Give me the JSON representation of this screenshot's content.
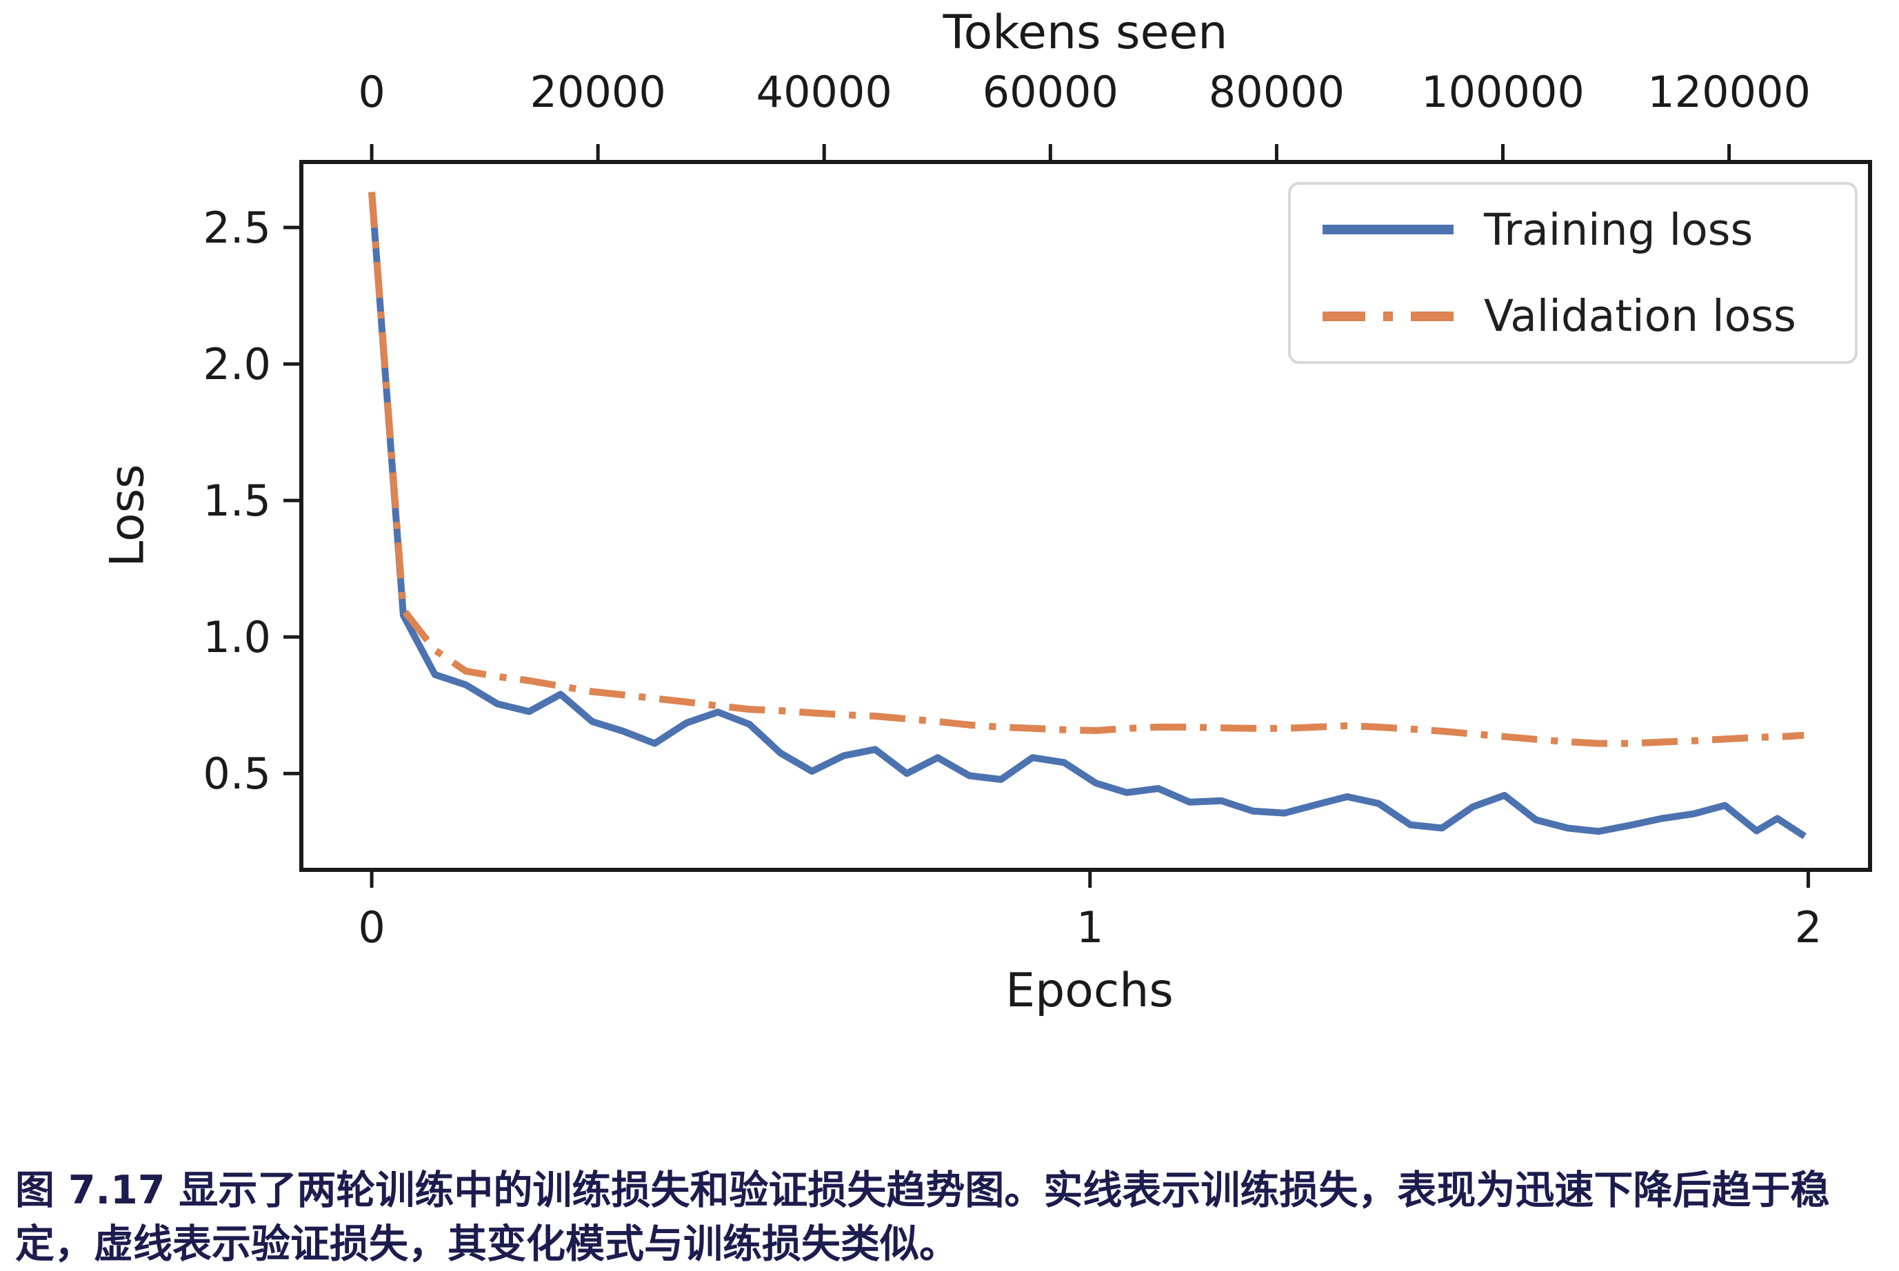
{
  "caption": {
    "text": "图 7.17 显示了两轮训练中的训练损失和验证损失趋势图。实线表示训练损失，表现为迅速下降后趋于稳定，虚线表示验证损失，其变化模式与训练损失类似。",
    "color": "#1c1c4e"
  },
  "legend": {
    "position": "upper right",
    "border_color": "#d8d8d8"
  },
  "chart_data": {
    "type": "line",
    "title": "",
    "xlabel": "Epochs",
    "ylabel": "Loss",
    "x2label": "Tokens seen",
    "grid": false,
    "frame_color": "#1a1a1a",
    "xlim": [
      -0.098,
      2.086
    ],
    "ylim": [
      0.147,
      2.74
    ],
    "xticks": [
      0,
      1,
      2
    ],
    "yticks": [
      2.5,
      2.0,
      1.5,
      1.0,
      0.5
    ],
    "top_ticks_tokens": [
      0,
      20000,
      40000,
      60000,
      80000,
      100000,
      120000
    ],
    "tokens_per_epoch": 63500,
    "series": [
      {
        "name": "Training loss",
        "color": "#4C72B0",
        "dash": "solid",
        "points": [
          [
            0.0,
            2.63
          ],
          [
            0.044,
            1.08
          ],
          [
            0.088,
            0.862
          ],
          [
            0.131,
            0.825
          ],
          [
            0.175,
            0.755
          ],
          [
            0.219,
            0.727
          ],
          [
            0.263,
            0.79
          ],
          [
            0.307,
            0.69
          ],
          [
            0.35,
            0.655
          ],
          [
            0.394,
            0.61
          ],
          [
            0.438,
            0.685
          ],
          [
            0.482,
            0.725
          ],
          [
            0.526,
            0.68
          ],
          [
            0.569,
            0.575
          ],
          [
            0.613,
            0.508
          ],
          [
            0.657,
            0.565
          ],
          [
            0.701,
            0.588
          ],
          [
            0.745,
            0.5
          ],
          [
            0.788,
            0.558
          ],
          [
            0.832,
            0.492
          ],
          [
            0.876,
            0.478
          ],
          [
            0.92,
            0.558
          ],
          [
            0.964,
            0.54
          ],
          [
            1.008,
            0.465
          ],
          [
            1.051,
            0.43
          ],
          [
            1.095,
            0.445
          ],
          [
            1.139,
            0.395
          ],
          [
            1.183,
            0.4
          ],
          [
            1.227,
            0.362
          ],
          [
            1.271,
            0.355
          ],
          [
            1.314,
            0.385
          ],
          [
            1.358,
            0.415
          ],
          [
            1.402,
            0.39
          ],
          [
            1.446,
            0.312
          ],
          [
            1.49,
            0.3
          ],
          [
            1.533,
            0.378
          ],
          [
            1.577,
            0.42
          ],
          [
            1.621,
            0.33
          ],
          [
            1.665,
            0.3
          ],
          [
            1.708,
            0.288
          ],
          [
            1.752,
            0.31
          ],
          [
            1.796,
            0.335
          ],
          [
            1.84,
            0.352
          ],
          [
            1.884,
            0.383
          ],
          [
            1.928,
            0.29
          ],
          [
            1.957,
            0.335
          ],
          [
            1.995,
            0.27
          ]
        ]
      },
      {
        "name": "Validation loss",
        "color": "#DD8452",
        "dash": "dashdot",
        "points": [
          [
            0.0,
            2.63
          ],
          [
            0.044,
            1.1
          ],
          [
            0.088,
            0.952
          ],
          [
            0.131,
            0.875
          ],
          [
            0.175,
            0.855
          ],
          [
            0.219,
            0.84
          ],
          [
            0.263,
            0.82
          ],
          [
            0.307,
            0.8
          ],
          [
            0.35,
            0.788
          ],
          [
            0.394,
            0.775
          ],
          [
            0.438,
            0.762
          ],
          [
            0.482,
            0.748
          ],
          [
            0.526,
            0.735
          ],
          [
            0.569,
            0.73
          ],
          [
            0.613,
            0.722
          ],
          [
            0.657,
            0.715
          ],
          [
            0.701,
            0.71
          ],
          [
            0.745,
            0.7
          ],
          [
            0.788,
            0.69
          ],
          [
            0.832,
            0.678
          ],
          [
            0.876,
            0.67
          ],
          [
            0.92,
            0.665
          ],
          [
            0.964,
            0.66
          ],
          [
            1.008,
            0.657
          ],
          [
            1.051,
            0.665
          ],
          [
            1.095,
            0.67
          ],
          [
            1.139,
            0.67
          ],
          [
            1.183,
            0.667
          ],
          [
            1.227,
            0.665
          ],
          [
            1.271,
            0.665
          ],
          [
            1.314,
            0.67
          ],
          [
            1.358,
            0.675
          ],
          [
            1.402,
            0.67
          ],
          [
            1.446,
            0.663
          ],
          [
            1.49,
            0.655
          ],
          [
            1.533,
            0.645
          ],
          [
            1.577,
            0.635
          ],
          [
            1.621,
            0.625
          ],
          [
            1.665,
            0.616
          ],
          [
            1.708,
            0.61
          ],
          [
            1.752,
            0.61
          ],
          [
            1.796,
            0.615
          ],
          [
            1.84,
            0.62
          ],
          [
            1.884,
            0.626
          ],
          [
            1.928,
            0.632
          ],
          [
            1.972,
            0.636
          ],
          [
            1.994,
            0.64
          ]
        ]
      }
    ]
  }
}
